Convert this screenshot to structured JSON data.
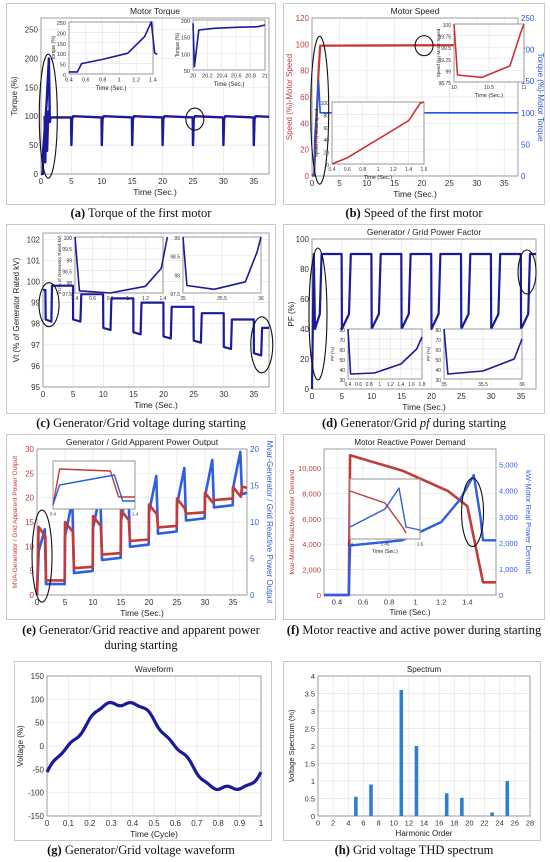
{
  "panels": [
    {
      "id": "a",
      "type": "line",
      "caption": {
        "letter": "(a)",
        "text": " Torque of the first motor"
      },
      "title": "Motor Torque",
      "xlabel": "Time (Sec.)",
      "ylabel": "Torque (%)",
      "xlim": [
        0,
        37.5
      ],
      "ylim": [
        0,
        270
      ],
      "xticks": [
        0,
        5,
        10,
        15,
        20,
        25,
        30,
        35
      ],
      "yticks": [
        0,
        50,
        100,
        150,
        200,
        250
      ],
      "series": [
        {
          "color": "#1a1a9a"
        }
      ],
      "insets": [
        {
          "xlabel": "Time (Sec.)",
          "ylabel": "Torque (%)",
          "xticks": [
            0.4,
            0.6,
            0.8,
            1,
            1.2,
            1.4
          ],
          "yticks": [
            0,
            50,
            100,
            150,
            200,
            250
          ]
        },
        {
          "xlabel": "Time (Sec.)",
          "ylabel": "Torque (%)",
          "xticks": [
            20,
            20.2,
            20.4,
            20.6,
            20.8,
            21
          ],
          "yticks": [
            50,
            100,
            150,
            200
          ]
        }
      ]
    },
    {
      "id": "b",
      "type": "line",
      "caption": {
        "letter": "(b)",
        "text": " Speed of the first motor"
      },
      "title": "Motor Speed",
      "xlabel": "Time (Sec.)",
      "ylabel": "Speed (%)-Motor Speed",
      "ylabel2": "Torque (%)-Motor Torque",
      "xlim": [
        0,
        37.5
      ],
      "ylim": [
        0,
        120
      ],
      "ylim2": [
        0,
        250
      ],
      "xticks": [
        0,
        5,
        10,
        15,
        20,
        25,
        30,
        35
      ],
      "yticks": [
        0,
        20,
        40,
        60,
        80,
        100,
        120
      ],
      "yticks2": [
        0,
        50,
        100,
        150,
        200,
        250
      ],
      "series": [
        {
          "color": "#cc3333"
        },
        {
          "color": "#2255dd"
        }
      ],
      "insets": [
        {
          "xlabel": "Time (Sec.)",
          "ylabel": "Speed (%)-Motor Speed",
          "ylabel2": "Torque (%)-Motor Torque",
          "xticks": [
            0.4,
            0.6,
            0.8,
            1,
            1.2,
            1.4,
            1.6
          ],
          "yticks": [
            0,
            20,
            40,
            60,
            80,
            100
          ],
          "yticks2": [
            50,
            100,
            150
          ]
        },
        {
          "xlabel": "Time (Sec.)",
          "ylabel": "Speed (%)-Motor Speed",
          "xticks": [
            10,
            10.5,
            11
          ],
          "yticks": [
            98.75,
            99,
            99.25,
            99.5,
            99.75,
            100
          ]
        }
      ]
    },
    {
      "id": "c",
      "type": "line",
      "caption": {
        "letter": "(c)",
        "text": " Generator/Grid voltage during starting"
      },
      "xlabel": "Time (Sec.)",
      "ylabel": "Vt (% of Generator Rated kV)",
      "xlim": [
        0,
        37.5
      ],
      "ylim": [
        95,
        102.3
      ],
      "xticks": [
        0,
        5,
        10,
        15,
        20,
        25,
        30,
        35
      ],
      "yticks": [
        95,
        96,
        97,
        98,
        99,
        100,
        101,
        102
      ],
      "series": [
        {
          "color": "#1a1a9a"
        }
      ],
      "insets": [
        {
          "ylabel": "Vt (% of Generator Rated kV)",
          "xticks": [
            0.4,
            0.6,
            0.8,
            1,
            1.2,
            1.4
          ],
          "yticks": [
            97.5,
            98,
            98.5,
            99,
            99.5,
            100
          ]
        },
        {
          "xticks": [
            35,
            35.5,
            36
          ],
          "yticks": [
            97.5,
            98,
            98.5,
            99
          ]
        }
      ]
    },
    {
      "id": "d",
      "type": "line",
      "caption": {
        "letter": "(d)",
        "prefix": " Generator/Grid ",
        "italic": "pf",
        "suffix": " during starting"
      },
      "title": "Generator / Grid Power Factor",
      "xlabel": "Time (Sec.)",
      "ylabel": "PF (%)",
      "xlim": [
        0,
        37.5
      ],
      "ylim": [
        0,
        100
      ],
      "xticks": [
        0,
        5,
        10,
        15,
        20,
        25,
        30,
        35
      ],
      "yticks": [
        0,
        20,
        40,
        60,
        80,
        100
      ],
      "series": [
        {
          "color": "#1a1a9a"
        }
      ],
      "insets": [
        {
          "ylabel": "PF (%)",
          "xticks": [
            0.4,
            0.6,
            0.8,
            1,
            1.2,
            1.4,
            1.6,
            1.8
          ],
          "yticks": [
            30,
            40,
            50,
            60,
            70,
            80
          ]
        },
        {
          "ylabel": "PF (%)",
          "xticks": [
            35,
            35.5,
            36
          ],
          "yticks": [
            30,
            40,
            50,
            60,
            70,
            80
          ]
        }
      ]
    },
    {
      "id": "e",
      "type": "line",
      "caption": {
        "letter": "(e)",
        "text": " Generator/Grid reactive and apparent power during starting"
      },
      "title": "Generator / Grid Apparent Power Output",
      "xlabel": "Time (Sec.)",
      "ylabel": "MVA-Generator / Grid Apparent Power Output",
      "ylabel2": "Mvar-Generator / Grid Reactive Power Output",
      "xlim": [
        0,
        37.5
      ],
      "ylim": [
        0,
        30
      ],
      "ylim2": [
        0,
        20
      ],
      "xticks": [
        0,
        5,
        10,
        15,
        20,
        25,
        30,
        35
      ],
      "yticks": [
        0,
        5,
        10,
        15,
        20,
        25,
        30
      ],
      "yticks2": [
        0,
        5,
        10,
        15,
        20
      ],
      "series": [
        {
          "color": "#c23b3b"
        },
        {
          "color": "#2f5fe0"
        }
      ]
    },
    {
      "id": "f",
      "type": "line",
      "caption": {
        "letter": "(f)",
        "text": " Motor reactive and active power during starting"
      },
      "title": "Motor Reactive Power Demand",
      "xlabel": "Time (Sec.)",
      "ylabel": "kvar-Motor Reactive Power Demand",
      "ylabel2": "kW-Motor Real Power Demand",
      "xlim": [
        0.3,
        1.62
      ],
      "ylim": [
        0,
        11500
      ],
      "ylim2": [
        0,
        5600
      ],
      "xticks": [
        0.4,
        0.6,
        0.8,
        1,
        1.2,
        1.4
      ],
      "yticks": [
        0,
        2000,
        4000,
        6000,
        8000,
        10000
      ],
      "yticks2": [
        0,
        1000,
        2000,
        3000,
        4000,
        5000
      ],
      "ytick_labels": [
        "0",
        "2,000",
        "4,000",
        "6,000",
        "8,000",
        "10,000"
      ],
      "ytick_labels2": [
        "0",
        "1,000",
        "2,000",
        "3,000",
        "4,000",
        "5,000"
      ],
      "series": [
        {
          "color": "#c23b3b"
        },
        {
          "color": "#2f5fe0"
        }
      ],
      "insets": [
        {
          "xlabel": "Time (Sec.)",
          "xticks": [
            1.4,
            1.45,
            1.5
          ]
        }
      ]
    },
    {
      "id": "g",
      "type": "line",
      "caption": {
        "letter": "(g)",
        "text": " Generator/Grid voltage waveform"
      },
      "title": "Waveform",
      "xlabel": "Time (Cycle)",
      "ylabel": "Voltage (%)",
      "xlim": [
        0,
        1
      ],
      "ylim": [
        -150,
        150
      ],
      "xticks": [
        0,
        0.1,
        0.2,
        0.3,
        0.4,
        0.5,
        0.6,
        0.7,
        0.8,
        0.9,
        1
      ],
      "yticks": [
        -150,
        -100,
        -50,
        0,
        50,
        100,
        150
      ],
      "series": [
        {
          "color": "#1a1a9a"
        }
      ]
    },
    {
      "id": "h",
      "type": "bar",
      "caption": {
        "letter": "(h)",
        "text": " Grid voltage THD spectrum"
      },
      "title": "Spectrum",
      "xlabel": "Harmonic Order",
      "ylabel": "Voltage Spectrum (%)",
      "xlim": [
        0,
        28
      ],
      "ylim": [
        0,
        4
      ],
      "xticks": [
        0,
        2,
        4,
        6,
        8,
        10,
        12,
        14,
        16,
        18,
        20,
        22,
        24,
        26,
        28
      ],
      "yticks": [
        0,
        0.5,
        1,
        1.5,
        2,
        2.5,
        3,
        3.5,
        4
      ],
      "bars": [
        {
          "x": 5,
          "y": 0.55
        },
        {
          "x": 7,
          "y": 0.9
        },
        {
          "x": 11,
          "y": 3.6
        },
        {
          "x": 13,
          "y": 2.0
        },
        {
          "x": 17,
          "y": 0.65
        },
        {
          "x": 19,
          "y": 0.52
        },
        {
          "x": 23,
          "y": 0.1
        },
        {
          "x": 25,
          "y": 1.0
        }
      ],
      "series": [
        {
          "color": "#2f7fd0"
        }
      ]
    }
  ]
}
